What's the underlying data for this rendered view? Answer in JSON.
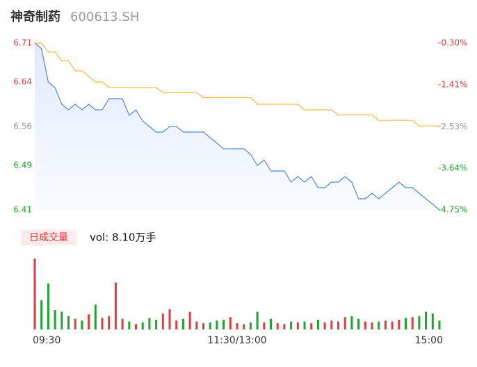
{
  "chart_data": [
    {
      "type": "line",
      "title": "神奇制药",
      "subtitle": "600613.SH",
      "x": [
        0,
        4,
        8,
        12,
        16,
        20,
        24,
        28,
        32,
        36,
        40,
        44,
        48,
        52,
        56,
        60,
        64,
        68,
        72,
        76,
        80,
        84,
        88,
        92,
        96,
        100,
        104,
        108,
        112,
        116,
        120,
        124,
        128,
        132,
        136,
        140,
        144,
        148,
        152,
        156,
        160,
        164,
        168,
        172,
        176,
        180,
        184,
        188,
        192,
        196,
        200,
        204,
        208,
        212,
        216,
        220,
        224,
        228,
        232,
        236,
        240
      ],
      "xlim": [
        0,
        240
      ],
      "xticks": [
        {
          "value": 0,
          "label": "09:30"
        },
        {
          "value": 120,
          "label": "11:30/13:00"
        },
        {
          "value": 240,
          "label": "15:00"
        }
      ],
      "ylim": [
        6.41,
        6.71
      ],
      "yticks": [
        6.71,
        6.64,
        6.56,
        6.49,
        6.41
      ],
      "y2lim": [
        -4.75,
        -0.3
      ],
      "y2ticks": [
        {
          "value": -0.3,
          "label": "-0.30%"
        },
        {
          "value": -1.41,
          "label": "-1.41%"
        },
        {
          "value": -2.53,
          "label": "-2.53%"
        },
        {
          "value": -3.64,
          "label": "-3.64%"
        },
        {
          "value": -4.75,
          "label": "-4.75%"
        }
      ],
      "up_color": "#e8393c",
      "down_color": "#1aa52b",
      "flat_color": "#999999",
      "series": [
        {
          "name": "price",
          "color": "#4f86e8",
          "values": [
            6.71,
            6.7,
            6.64,
            6.63,
            6.6,
            6.59,
            6.6,
            6.59,
            6.6,
            6.59,
            6.59,
            6.61,
            6.61,
            6.61,
            6.58,
            6.59,
            6.57,
            6.56,
            6.55,
            6.55,
            6.56,
            6.56,
            6.55,
            6.55,
            6.55,
            6.55,
            6.54,
            6.53,
            6.52,
            6.52,
            6.52,
            6.52,
            6.51,
            6.49,
            6.5,
            6.48,
            6.48,
            6.48,
            6.46,
            6.47,
            6.46,
            6.47,
            6.45,
            6.45,
            6.46,
            6.46,
            6.47,
            6.46,
            6.43,
            6.43,
            6.44,
            6.43,
            6.44,
            6.45,
            6.46,
            6.45,
            6.45,
            6.44,
            6.43,
            6.42,
            6.41
          ]
        },
        {
          "name": "average",
          "color": "#f5b942",
          "values": [
            6.71,
            6.71,
            6.694,
            6.694,
            6.678,
            6.678,
            6.66,
            6.66,
            6.65,
            6.64,
            6.64,
            6.63,
            6.63,
            6.63,
            6.63,
            6.63,
            6.63,
            6.63,
            6.63,
            6.621,
            6.621,
            6.621,
            6.621,
            6.621,
            6.621,
            6.612,
            6.612,
            6.612,
            6.612,
            6.612,
            6.612,
            6.612,
            6.612,
            6.6,
            6.6,
            6.6,
            6.6,
            6.6,
            6.6,
            6.6,
            6.59,
            6.59,
            6.59,
            6.59,
            6.59,
            6.581,
            6.581,
            6.581,
            6.581,
            6.581,
            6.581,
            6.571,
            6.571,
            6.571,
            6.571,
            6.571,
            6.571,
            6.561,
            6.561,
            6.561,
            6.561
          ]
        }
      ]
    },
    {
      "type": "bar",
      "label": "日成交量",
      "annotation": "vol: 8.10万手",
      "ylim": [
        0,
        8000
      ],
      "values": [
        8000,
        3300,
        5200,
        2200,
        2000,
        1500,
        1200,
        1000,
        1700,
        2800,
        1300,
        1500,
        5300,
        1200,
        900,
        600,
        800,
        1300,
        1100,
        1800,
        2300,
        1000,
        1200,
        2000,
        900,
        700,
        800,
        1000,
        1100,
        1400,
        700,
        600,
        800,
        2000,
        800,
        1200,
        700,
        600,
        900,
        800,
        900,
        700,
        1100,
        800,
        1000,
        900,
        1400,
        1500,
        1200,
        900,
        800,
        900,
        1000,
        900,
        1100,
        1300,
        1400,
        1500,
        2000,
        1800,
        1000
      ]
    }
  ]
}
